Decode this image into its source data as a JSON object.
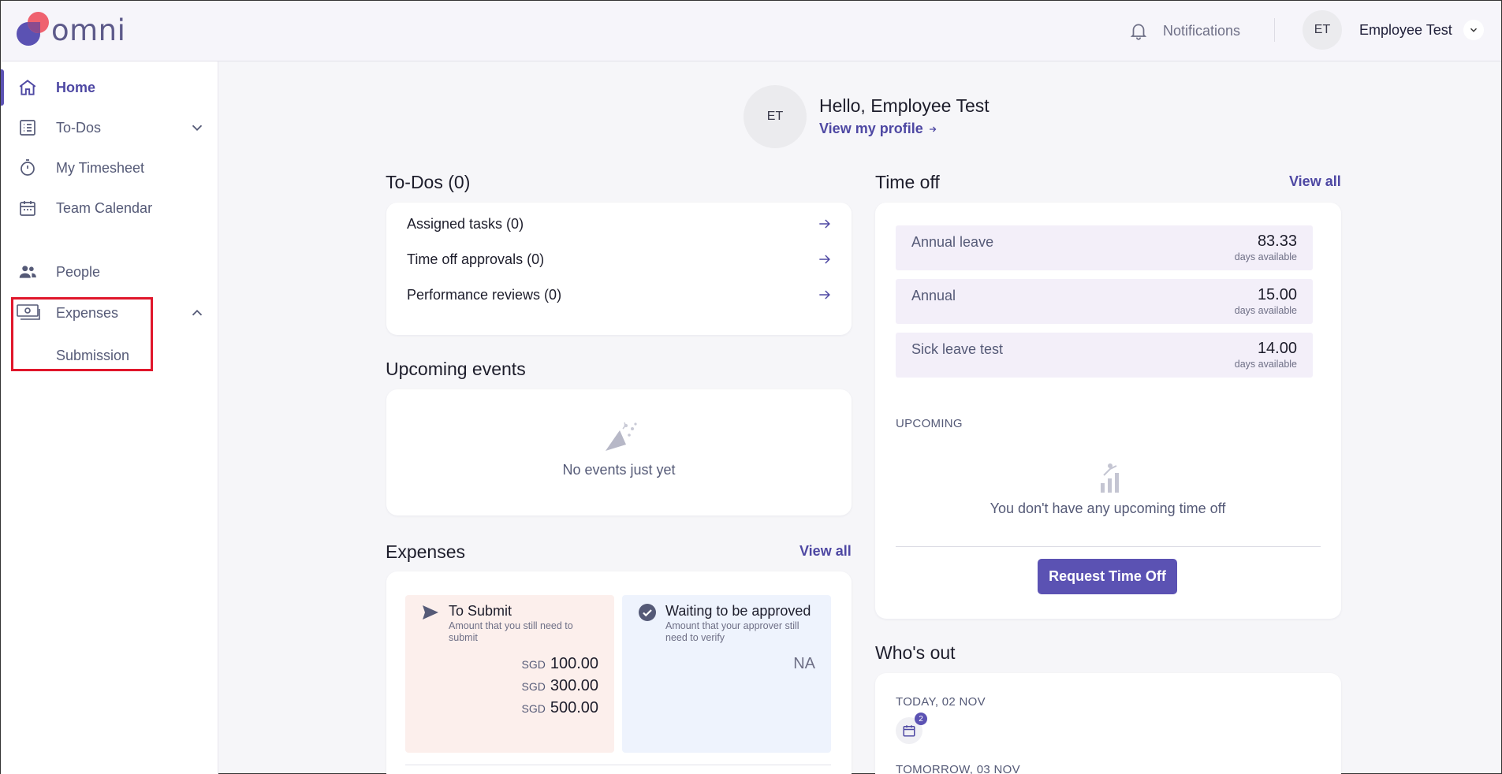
{
  "app": {
    "logo_text": "omni",
    "notifications_label": "Notifications",
    "user_initials": "ET",
    "user_name": "Employee Test"
  },
  "sidebar": {
    "items": [
      {
        "label": "Home",
        "icon": "home-icon",
        "active": true
      },
      {
        "label": "To-Dos",
        "icon": "checklist-icon",
        "expandable": true
      },
      {
        "label": "My Timesheet",
        "icon": "stopwatch-icon"
      },
      {
        "label": "Team Calendar",
        "icon": "calendar-icon"
      },
      {
        "label": "People",
        "icon": "people-icon"
      },
      {
        "label": "Expenses",
        "icon": "money-icon",
        "expanded": true
      }
    ],
    "expenses_sub": "Submission"
  },
  "greeting": {
    "initials": "ET",
    "title": "Hello, Employee Test",
    "profile_link": "View my profile"
  },
  "todos": {
    "title": "To-Dos (0)",
    "items": [
      "Assigned tasks (0)",
      "Time off approvals (0)",
      "Performance reviews (0)"
    ]
  },
  "events": {
    "title": "Upcoming events",
    "empty": "No events just yet"
  },
  "expenses": {
    "title": "Expenses",
    "view_all": "View all",
    "to_submit": {
      "title": "To Submit",
      "desc": "Amount that you still need to submit",
      "amounts": [
        {
          "currency": "SGD",
          "value": "100.00"
        },
        {
          "currency": "SGD",
          "value": "300.00"
        },
        {
          "currency": "SGD",
          "value": "500.00"
        }
      ]
    },
    "waiting": {
      "title": "Waiting to be approved",
      "desc": "Amount that your approver still need to verify",
      "value": "NA"
    }
  },
  "time_off": {
    "title": "Time off",
    "view_all": "View all",
    "leaves": [
      {
        "name": "Annual leave",
        "days": "83.33",
        "sub": "days available"
      },
      {
        "name": "Annual",
        "days": "15.00",
        "sub": "days available"
      },
      {
        "name": "Sick leave test",
        "days": "14.00",
        "sub": "days available"
      }
    ],
    "upcoming_label": "UPCOMING",
    "upcoming_empty": "You don't have any upcoming time off",
    "request_button": "Request Time Off"
  },
  "whos_out": {
    "title": "Who's out",
    "today_label": "TODAY, 02 NOV",
    "today_count": "2",
    "tomorrow_label": "TOMORROW, 03 NOV"
  },
  "colors": {
    "accent": "#5b52b3",
    "to_submit_bg": "#fcefec",
    "waiting_bg": "#eef3fd",
    "leave_row_bg": "#f3eff9",
    "highlight": "#e0162b"
  }
}
